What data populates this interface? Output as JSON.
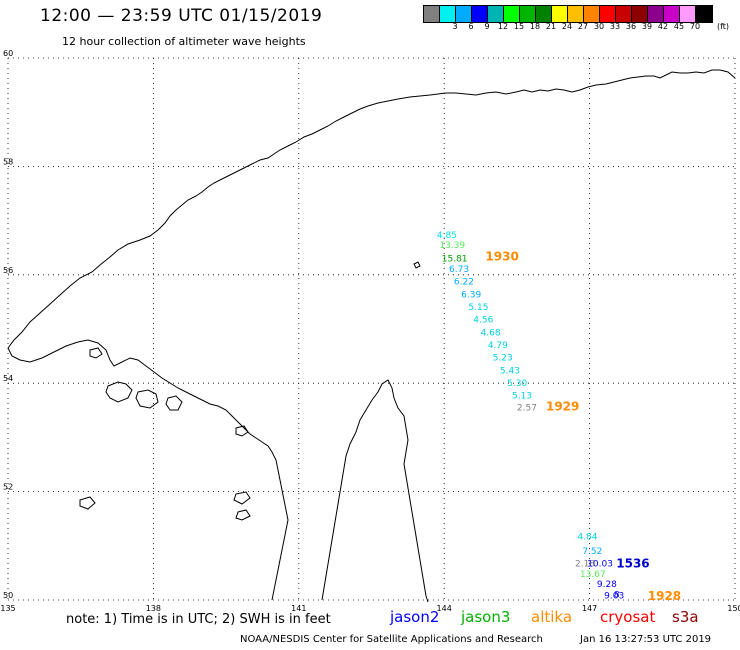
{
  "header": {
    "title": "12:00 — 23:59 UTC 01/15/2019",
    "subtitle": "12 hour collection of altimeter wave heights"
  },
  "color_scale": {
    "unit_label": "(ft)",
    "bins": [
      {
        "label": "",
        "color": "#808080"
      },
      {
        "label": "3",
        "color": "#00f0f0"
      },
      {
        "label": "6",
        "color": "#00aaff"
      },
      {
        "label": "9",
        "color": "#0000ff"
      },
      {
        "label": "12",
        "color": "#00b4b4"
      },
      {
        "label": "15",
        "color": "#00ff00"
      },
      {
        "label": "18",
        "color": "#00b400"
      },
      {
        "label": "21",
        "color": "#008200"
      },
      {
        "label": "24",
        "color": "#ffff00"
      },
      {
        "label": "27",
        "color": "#ffbe00"
      },
      {
        "label": "30",
        "color": "#ff8200"
      },
      {
        "label": "33",
        "color": "#ff0000"
      },
      {
        "label": "36",
        "color": "#c80000"
      },
      {
        "label": "39",
        "color": "#8c0000"
      },
      {
        "label": "42",
        "color": "#8c008c"
      },
      {
        "label": "45",
        "color": "#c800c8"
      },
      {
        "label": "70",
        "color": "#ff9bff"
      },
      {
        "label": "",
        "color": "#000000"
      }
    ]
  },
  "map": {
    "lon_ticks": [
      135,
      138,
      141,
      144,
      147,
      150
    ],
    "lat_ticks": [
      50,
      52,
      54,
      56,
      58,
      60
    ],
    "extent": {
      "lon": [
        135,
        150
      ],
      "lat": [
        50,
        60
      ]
    },
    "grid": true
  },
  "observations": [
    {
      "lon": 143.85,
      "lat": 56.68,
      "value": "4.85",
      "color": "#00e0e0"
    },
    {
      "lon": 143.9,
      "lat": 56.49,
      "value": "13.39",
      "color": "#55ee55"
    },
    {
      "lon": 143.95,
      "lat": 56.25,
      "value": "15.81",
      "color": "#00a000"
    },
    {
      "lon": 144.1,
      "lat": 56.05,
      "value": "6.73",
      "color": "#00aaff"
    },
    {
      "lon": 144.2,
      "lat": 55.82,
      "value": "6.22",
      "color": "#00aaff"
    },
    {
      "lon": 144.35,
      "lat": 55.58,
      "value": "6.39",
      "color": "#00aaff"
    },
    {
      "lon": 144.5,
      "lat": 55.35,
      "value": "5.15",
      "color": "#00d0e0"
    },
    {
      "lon": 144.6,
      "lat": 55.12,
      "value": "4.56",
      "color": "#00d0e0"
    },
    {
      "lon": 144.75,
      "lat": 54.88,
      "value": "4.68",
      "color": "#00d0e0"
    },
    {
      "lon": 144.9,
      "lat": 54.65,
      "value": "4.79",
      "color": "#00d0e0"
    },
    {
      "lon": 145.0,
      "lat": 54.42,
      "value": "5.23",
      "color": "#00d0e0"
    },
    {
      "lon": 145.15,
      "lat": 54.18,
      "value": "5.43",
      "color": "#00d0e0"
    },
    {
      "lon": 145.3,
      "lat": 53.95,
      "value": "5.30",
      "color": "#00d0e0"
    },
    {
      "lon": 145.4,
      "lat": 53.72,
      "value": "5.13",
      "color": "#00d0e0"
    },
    {
      "lon": 145.5,
      "lat": 53.5,
      "value": "2.57",
      "color": "#808080"
    },
    {
      "lon": 146.75,
      "lat": 51.12,
      "value": "4.84",
      "color": "#00d0e0"
    },
    {
      "lon": 146.85,
      "lat": 50.85,
      "value": "7.52",
      "color": "#00aaff"
    },
    {
      "lon": 146.7,
      "lat": 50.62,
      "value": "2.18",
      "color": "#808080"
    },
    {
      "lon": 146.95,
      "lat": 50.62,
      "value": "10.03",
      "color": "#0000ff"
    },
    {
      "lon": 146.8,
      "lat": 50.42,
      "value": "13.67",
      "color": "#55ee55"
    },
    {
      "lon": 147.15,
      "lat": 50.24,
      "value": "9.28",
      "color": "#0000ff"
    },
    {
      "lon": 147.3,
      "lat": 50.03,
      "value": "9.03",
      "color": "#0000ff"
    },
    {
      "lon": 147.5,
      "lat": 50.05,
      "value": "8",
      "color": "#0000ff"
    }
  ],
  "pass_times": [
    {
      "lon": 144.85,
      "lat": 56.26,
      "value": "1930",
      "color": "#ff8c00"
    },
    {
      "lon": 146.1,
      "lat": 53.5,
      "value": "1929",
      "color": "#ff8c00"
    },
    {
      "lon": 147.55,
      "lat": 50.6,
      "value": "1536",
      "color": "#0000cc"
    },
    {
      "lon": 148.2,
      "lat": 50.0,
      "value": "1928",
      "color": "#ff8c00"
    }
  ],
  "footer": {
    "note": "note: 1) Time is in UTC; 2) SWH is in feet",
    "satellites": [
      {
        "name": "jason2",
        "color": "#0000ff"
      },
      {
        "name": "jason3",
        "color": "#00b000"
      },
      {
        "name": "altika",
        "color": "#ff8c00"
      },
      {
        "name": "cryosat",
        "color": "#ff0000"
      },
      {
        "name": "s3a",
        "color": "#8b0000"
      }
    ],
    "credit": "NOAA/NESDIS Center for Satellite Applications and Research",
    "timestamp": "Jan 16 13:27:53 UTC 2019"
  }
}
